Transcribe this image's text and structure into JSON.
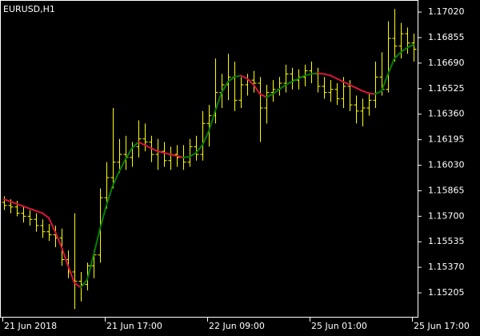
{
  "chart_data": {
    "type": "ohlc",
    "title": "EURUSD,H1",
    "bar_color": "#ffff00",
    "categories": [
      "21 Jun 2018",
      null,
      null,
      null,
      null,
      null,
      null,
      null,
      null,
      null,
      null,
      null,
      null,
      null,
      null,
      null,
      "21 Jun 17:00",
      null,
      null,
      null,
      null,
      null,
      null,
      null,
      null,
      null,
      null,
      null,
      null,
      null,
      null,
      null,
      "22 Jun 09:00",
      null,
      null,
      null,
      null,
      null,
      null,
      null,
      null,
      null,
      null,
      null,
      null,
      null,
      null,
      null,
      "25 Jun 01:00",
      null,
      null,
      null,
      null,
      null,
      null,
      null,
      null,
      null,
      null,
      null,
      null,
      null,
      null,
      null,
      "25 Jun 17:00"
    ],
    "open": [
      1.1579,
      1.1577,
      1.1576,
      1.1572,
      1.157,
      1.1568,
      1.1564,
      1.156,
      1.1558,
      1.1556,
      1.1542,
      1.1534,
      1.1528,
      1.1526,
      1.1538,
      1.1545,
      1.1582,
      1.1595,
      1.1605,
      1.161,
      1.1608,
      1.1615,
      1.162,
      1.1618,
      1.161,
      1.1612,
      1.1606,
      1.161,
      1.1608,
      1.1605,
      1.1615,
      1.161,
      1.163,
      1.1635,
      1.165,
      1.1655,
      1.166,
      1.1645,
      1.1655,
      1.1658,
      1.1656,
      1.164,
      1.165,
      1.1652,
      1.1656,
      1.1662,
      1.1658,
      1.166,
      1.1664,
      1.1662,
      1.1654,
      1.165,
      1.1652,
      1.1646,
      1.1654,
      1.1642,
      1.1638,
      1.164,
      1.1645,
      1.166,
      1.1652,
      1.1685,
      1.168,
      1.1688,
      1.1682
    ],
    "high": [
      1.1583,
      1.1581,
      1.158,
      1.1577,
      1.1574,
      1.1572,
      1.1568,
      1.1565,
      1.1564,
      1.1562,
      1.1548,
      1.1572,
      1.1534,
      1.154,
      1.1548,
      1.1588,
      1.1605,
      1.164,
      1.162,
      1.1622,
      1.1618,
      1.1632,
      1.163,
      1.1622,
      1.162,
      1.1618,
      1.1615,
      1.1616,
      1.1616,
      1.162,
      1.1622,
      1.1638,
      1.1642,
      1.1672,
      1.1662,
      1.1675,
      1.167,
      1.166,
      1.1662,
      1.1664,
      1.166,
      1.1655,
      1.1658,
      1.166,
      1.1668,
      1.1666,
      1.1665,
      1.1668,
      1.167,
      1.1666,
      1.166,
      1.1658,
      1.1656,
      1.166,
      1.1658,
      1.1648,
      1.1646,
      1.165,
      1.167,
      1.1676,
      1.1696,
      1.1704,
      1.1695,
      1.1692,
      1.1688
    ],
    "low": [
      1.1574,
      1.1572,
      1.157,
      1.1566,
      1.1564,
      1.156,
      1.1556,
      1.1554,
      1.155,
      1.1538,
      1.153,
      1.151,
      1.1515,
      1.1522,
      1.153,
      1.154,
      1.1575,
      1.1588,
      1.1598,
      1.16,
      1.1602,
      1.1608,
      1.1612,
      1.1605,
      1.16,
      1.1602,
      1.16,
      1.1602,
      1.16,
      1.1602,
      1.1606,
      1.1606,
      1.1615,
      1.163,
      1.164,
      1.1645,
      1.1638,
      1.164,
      1.1648,
      1.165,
      1.1618,
      1.163,
      1.1644,
      1.1648,
      1.165,
      1.1652,
      1.1652,
      1.1654,
      1.1656,
      1.165,
      1.1646,
      1.1644,
      1.1642,
      1.164,
      1.1638,
      1.163,
      1.1628,
      1.1635,
      1.164,
      1.1648,
      1.165,
      1.167,
      1.1672,
      1.1675,
      1.167
    ],
    "close": [
      1.1577,
      1.1576,
      1.1572,
      1.157,
      1.1568,
      1.1564,
      1.156,
      1.1558,
      1.1556,
      1.1542,
      1.1534,
      1.1528,
      1.1526,
      1.1538,
      1.1545,
      1.1582,
      1.1595,
      1.1605,
      1.161,
      1.1608,
      1.1615,
      1.162,
      1.1618,
      1.161,
      1.1612,
      1.1606,
      1.161,
      1.1608,
      1.1605,
      1.1615,
      1.161,
      1.163,
      1.1635,
      1.165,
      1.1655,
      1.166,
      1.1645,
      1.1655,
      1.1658,
      1.1656,
      1.164,
      1.165,
      1.1652,
      1.1656,
      1.1662,
      1.1658,
      1.166,
      1.1664,
      1.1662,
      1.1654,
      1.165,
      1.1652,
      1.1646,
      1.1654,
      1.1642,
      1.1638,
      1.164,
      1.1645,
      1.166,
      1.1652,
      1.1685,
      1.168,
      1.1688,
      1.1682,
      1.1678
    ],
    "moving_average": {
      "up_color": "#008000",
      "down_color": "#dc143c",
      "values": [
        1.1581,
        1.15795,
        1.1578,
        1.15765,
        1.1575,
        1.15735,
        1.1572,
        1.1569,
        1.156,
        1.155,
        1.1538,
        1.1527,
        1.1524,
        1.1529,
        1.1545,
        1.1562,
        1.1577,
        1.159,
        1.1599,
        1.1607,
        1.1614,
        1.1618,
        1.1616,
        1.1614,
        1.1612,
        1.1611,
        1.161,
        1.1609,
        1.1608,
        1.16085,
        1.1611,
        1.1616,
        1.1625,
        1.1638,
        1.165,
        1.1657,
        1.166,
        1.1661,
        1.1659,
        1.1655,
        1.1649,
        1.1647,
        1.1649,
        1.1652,
        1.1655,
        1.1657,
        1.1659,
        1.1661,
        1.1662,
        1.16625,
        1.1662,
        1.1661,
        1.1659,
        1.1657,
        1.1655,
        1.1653,
        1.1651,
        1.16495,
        1.1649,
        1.1651,
        1.1662,
        1.1672,
        1.1676,
        1.1679,
        1.1681
      ]
    },
    "ylim": [
      1.15045,
      1.17098
    ],
    "yticks": [
      1.15205,
      {
        "value": 1.1537,
        "label": "1.15370"
      },
      1.15535,
      {
        "value": 1.157,
        "label": "1.15700"
      },
      1.15865,
      {
        "value": 1.1603,
        "label": "1.16030"
      },
      1.16195,
      {
        "value": 1.1636,
        "label": "1.16360"
      },
      1.16525,
      {
        "value": 1.1669,
        "label": "1.16690"
      },
      1.16855,
      {
        "value": 1.1702,
        "label": "1.17020"
      }
    ]
  }
}
